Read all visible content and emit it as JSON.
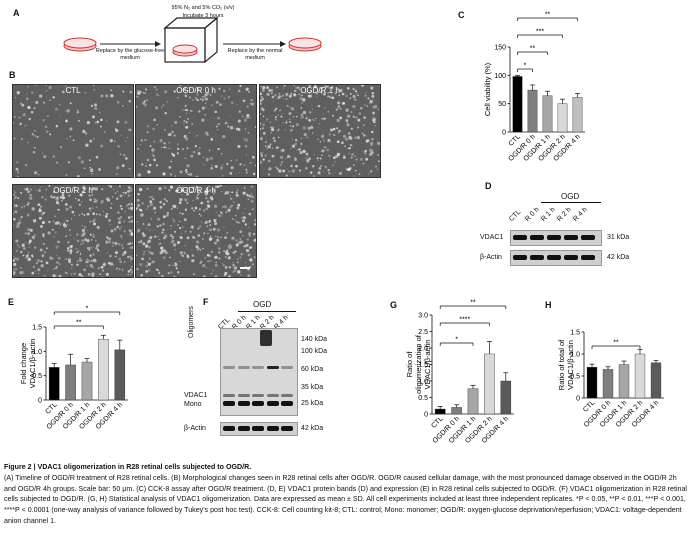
{
  "panel_labels": {
    "a": "A",
    "b": "B",
    "c": "C",
    "d": "D",
    "e": "E",
    "f": "F",
    "g": "G",
    "h": "H"
  },
  "panelA": {
    "condition": "95% N₂ and 5% CO₂ (v/v)",
    "incubate": "Incubate 3 hours",
    "step1": "Replace by the glucose-free medium",
    "step2": "Replace by the normal medium"
  },
  "panelB": {
    "images": [
      "CTL",
      "OGD/R 0 h",
      "OGD/R 1 h",
      "OGD/R 2 h",
      "OGD/R 4 h"
    ]
  },
  "blots": {
    "d_group": "OGD",
    "d_lanes": [
      "CTL",
      "R 0 h",
      "R 1 h",
      "R 2 h",
      "R 4 h"
    ],
    "d_rows": [
      "VDAC1",
      "β-Actin"
    ],
    "d_sizes": [
      "31 kDa",
      "42 kDa"
    ],
    "f_group": "OGD",
    "f_lanes": [
      "CTL",
      "R 0 h",
      "R 1 h",
      "R 2 h",
      "R 4 h"
    ],
    "f_left": {
      "oligomers": "Oligomers",
      "vdac1": "VDAC1",
      "mono": "Mono",
      "actin": "β-Actin"
    },
    "f_sizes": [
      "140 kDa",
      "100 kDa",
      "60 kDa",
      "35 kDa",
      "25 kDa",
      "42 kDa"
    ]
  },
  "chart_data": [
    {
      "panel": "C",
      "type": "bar",
      "categories": [
        "CTL",
        "OGD/R 0 h",
        "OGD/R 1 h",
        "OGD/R 2 h",
        "OGD/R 4 h"
      ],
      "values": [
        98,
        74,
        64,
        50,
        61
      ],
      "errors": [
        2,
        9,
        8,
        8,
        7
      ],
      "ylabel": "Cell viability (%)",
      "ylim": [
        0,
        150
      ],
      "yticks": [
        0,
        50,
        100,
        150
      ],
      "significance": [
        "*",
        "**",
        "***",
        "**"
      ],
      "colors": [
        "#000000",
        "#7f7f7f",
        "#a6a6a6",
        "#d9d9d9",
        "#bfbfbf"
      ]
    },
    {
      "panel": "E",
      "type": "bar",
      "categories": [
        "CTL",
        "OGD/R 0 h",
        "OGD/R 1 h",
        "OGD/R 2 h",
        "OGD/R 4 h"
      ],
      "values": [
        0.67,
        0.72,
        0.78,
        1.25,
        1.03
      ],
      "errors": [
        0.08,
        0.22,
        0.07,
        0.08,
        0.2
      ],
      "ylabel": "Fold change VDAC1/β-actin",
      "ylim": [
        0,
        1.5
      ],
      "yticks": [
        "0",
        "0.5",
        "1.0",
        "1.5"
      ],
      "significance": [
        "**",
        "*"
      ]
    },
    {
      "panel": "G",
      "type": "bar",
      "categories": [
        "CTL",
        "OGD/R 0 h",
        "OGD/R 1 h",
        "OGD/R 2 h",
        "OGD/R 4 h"
      ],
      "values": [
        0.15,
        0.2,
        0.77,
        1.82,
        1.0
      ],
      "errors": [
        0.08,
        0.08,
        0.1,
        0.38,
        0.25
      ],
      "ylabel": "Ratio of oligomerization of VDAC1/β-actin",
      "ylim": [
        0,
        3.0
      ],
      "yticks": [
        "0",
        "0.5",
        "1.0",
        "1.5",
        "2.0",
        "2.5",
        "3.0"
      ],
      "significance": [
        "*",
        "****",
        "**"
      ]
    },
    {
      "panel": "H",
      "type": "bar",
      "categories": [
        "CTL",
        "OGD/R 0 h",
        "OGD/R 1 h",
        "OGD/R 2 h",
        "OGD/R 4 h"
      ],
      "values": [
        0.7,
        0.65,
        0.76,
        1.0,
        0.8
      ],
      "errors": [
        0.07,
        0.06,
        0.08,
        0.1,
        0.05
      ],
      "ylabel": "Ratio of total of VDAC1/β-actin",
      "ylim": [
        0,
        1.5
      ],
      "yticks": [
        "0",
        "0.5",
        "1.0",
        "1.5"
      ],
      "significance": [
        "**"
      ]
    }
  ],
  "caption": {
    "fig_label": "Figure 2",
    "title": "VDAC1 oligomerization in R28 retinal cells subjected to OGD/R.",
    "body": "(A) Timeline of OGD/R treatment of R28 retinal cells. (B) Morphological changes seen in R28 retinal cells after OGD/R. OGD/R caused cellular damage, with the most pronounced damage observed in the OGD/R 2h and OGD/R 4h groups. Scale bar: 50 μm. (C) CCK-8 assay after OGD/R treatment. (D, E) VDAC1 protein bands (D) and expression (E) in R28 retinal cells subjected to OGD/R. (F) VDAC1 oligomerization in R28 retinal cells subjected to OGD/R. (G, H) Statistical analysis of VDAC1 oligomerization. Data are expressed as mean ± SD. All cell experiments included at least three independent replicates. *P < 0.05, **P < 0.01, ***P < 0.001, ****P < 0.0001 (one-way analysis of variance followed by Tukey's post hoc test). CCK-8: Cell counting kit-8; CTL: control; Mono: monomer; OGD/R: oxygen-glucose deprivation/reperfusion; VDAC1: voltage-dependent anion channel 1."
  }
}
